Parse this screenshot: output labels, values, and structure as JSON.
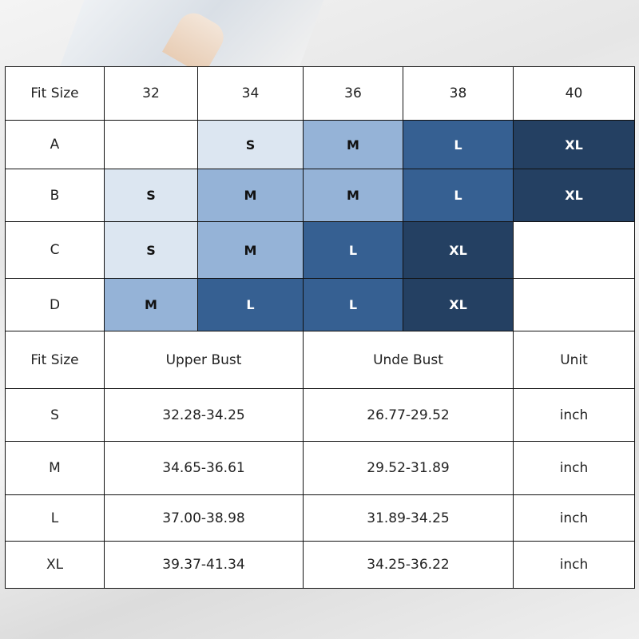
{
  "colors": {
    "S": "#dce6f1",
    "M": "#95b3d7",
    "L": "#366092",
    "XL": "#244062"
  },
  "grid": {
    "header": [
      "Fit Size",
      "32",
      "34",
      "36",
      "38",
      "40"
    ],
    "rows": [
      {
        "cup": "A",
        "cells": [
          "",
          "S",
          "M",
          "L",
          "XL"
        ]
      },
      {
        "cup": "B",
        "cells": [
          "S",
          "M",
          "M",
          "L",
          "XL"
        ]
      },
      {
        "cup": "C",
        "cells": [
          "S",
          "M",
          "L",
          "XL",
          ""
        ]
      },
      {
        "cup": "D",
        "cells": [
          "M",
          "L",
          "L",
          "XL",
          ""
        ]
      }
    ]
  },
  "measure": {
    "header": [
      "Fit Size",
      "Upper Bust",
      "Unde Bust",
      "Unit"
    ],
    "rows": [
      [
        "S",
        "32.28-34.25",
        "26.77-29.52",
        "inch"
      ],
      [
        "M",
        "34.65-36.61",
        "29.52-31.89",
        "inch"
      ],
      [
        "L",
        "37.00-38.98",
        "31.89-34.25",
        "inch"
      ],
      [
        "XL",
        "39.37-41.34",
        "34.25-36.22",
        "inch"
      ]
    ]
  }
}
